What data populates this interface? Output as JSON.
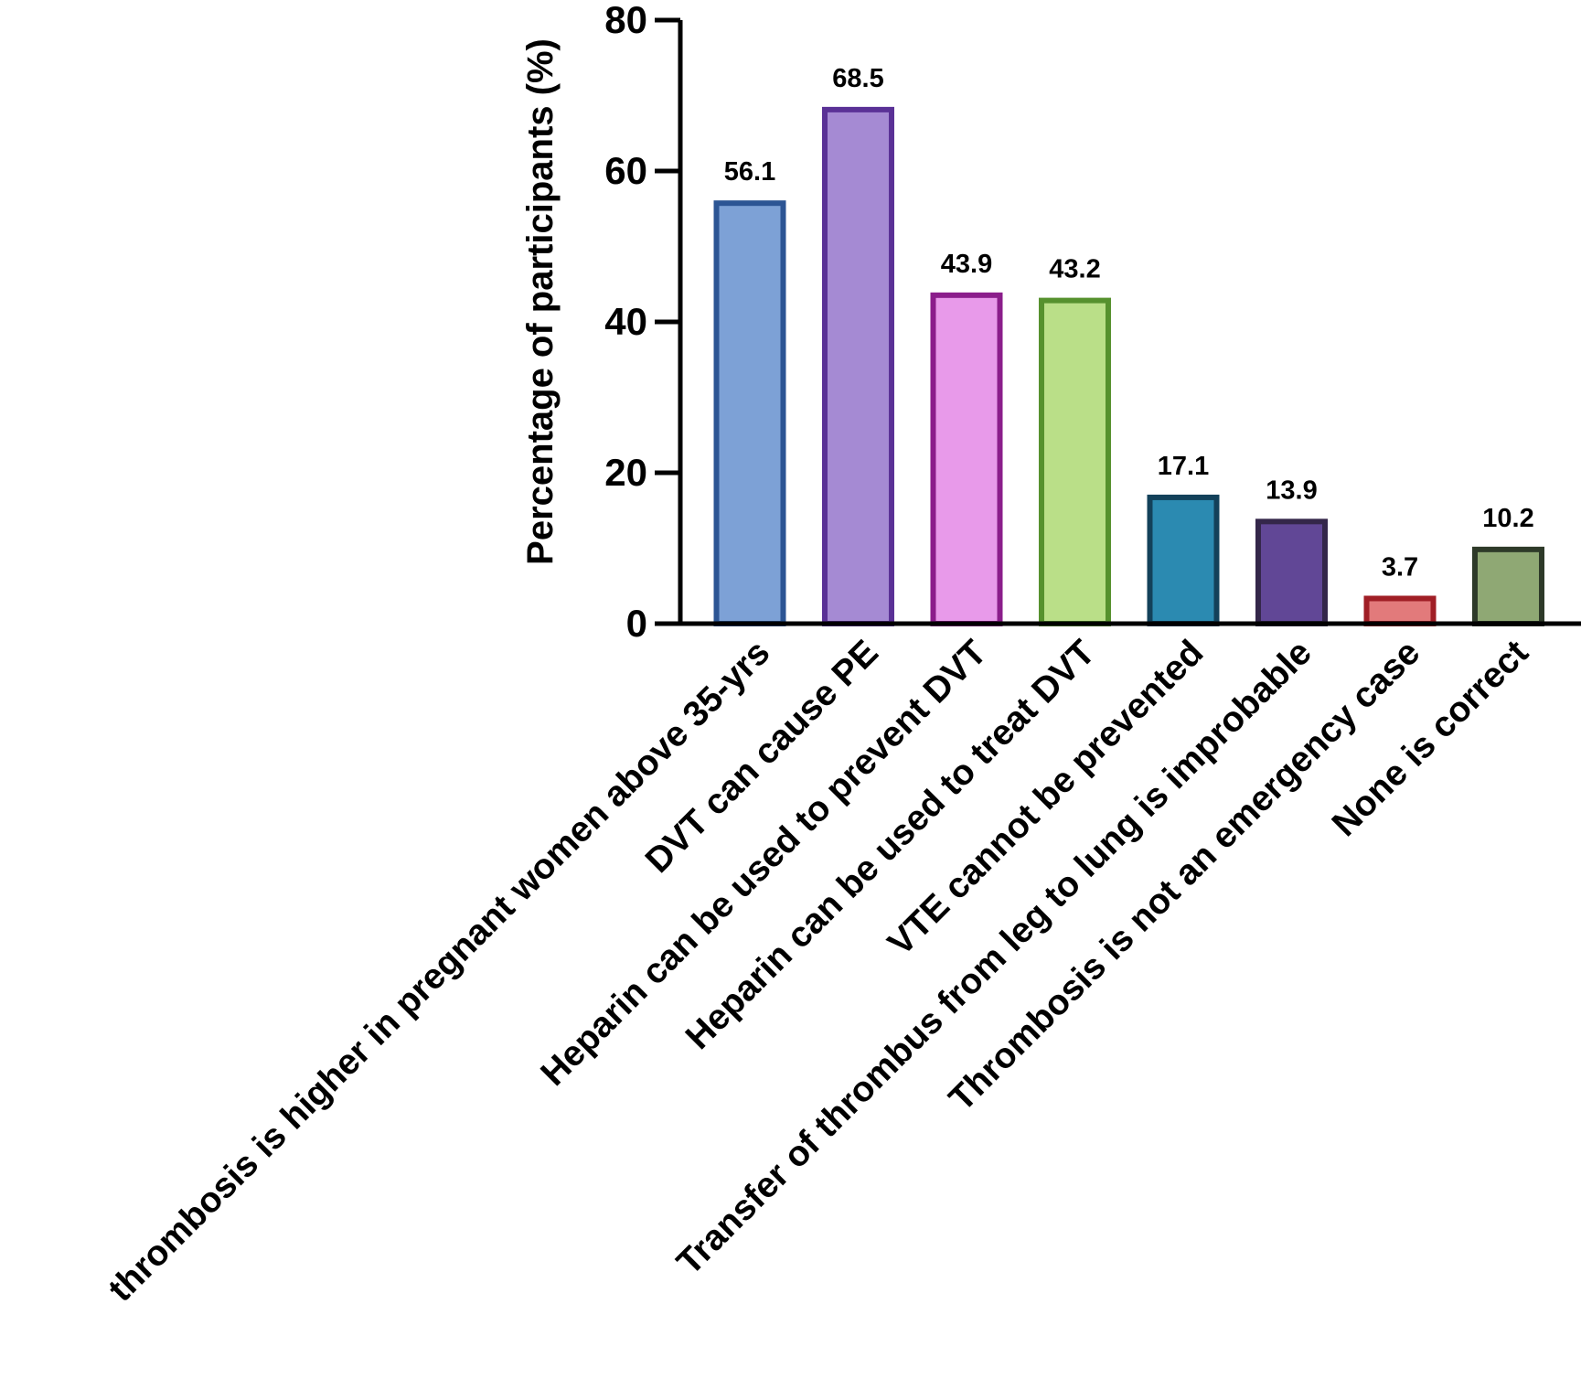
{
  "chart_data": {
    "type": "bar",
    "title": "",
    "xlabel": "",
    "ylabel": "Percentage of participants (%)",
    "ylim": [
      0,
      80
    ],
    "yticks": [
      0,
      20,
      40,
      60,
      80
    ],
    "grid": false,
    "categories": [
      "thrombosis is higher in pregnant women above 35-yrs",
      "DVT can cause PE",
      "Heparin can be used to prevent DVT",
      "Heparin can be used to treat DVT",
      "VTE cannot be prevented",
      "Transfer of thrombus from leg to lung is improbable",
      "Thrombosis is not an emergency case",
      "None is correct"
    ],
    "values": [
      56.1,
      68.5,
      43.9,
      43.2,
      17.1,
      13.9,
      3.7,
      10.2
    ],
    "data_labels": [
      "56.1",
      "68.5",
      "43.9",
      "43.2",
      "17.1",
      "13.9",
      "3.7",
      "10.2"
    ],
    "fill_colors": [
      "#7da1d6",
      "#a58ad3",
      "#e89aea",
      "#badf88",
      "#2b8ab1",
      "#614796",
      "#e27a7b",
      "#8fa874"
    ],
    "edge_colors": [
      "#2c5594",
      "#5a3196",
      "#8b1d8b",
      "#56912e",
      "#13415a",
      "#34274a",
      "#a01e25",
      "#2e3a29"
    ]
  }
}
